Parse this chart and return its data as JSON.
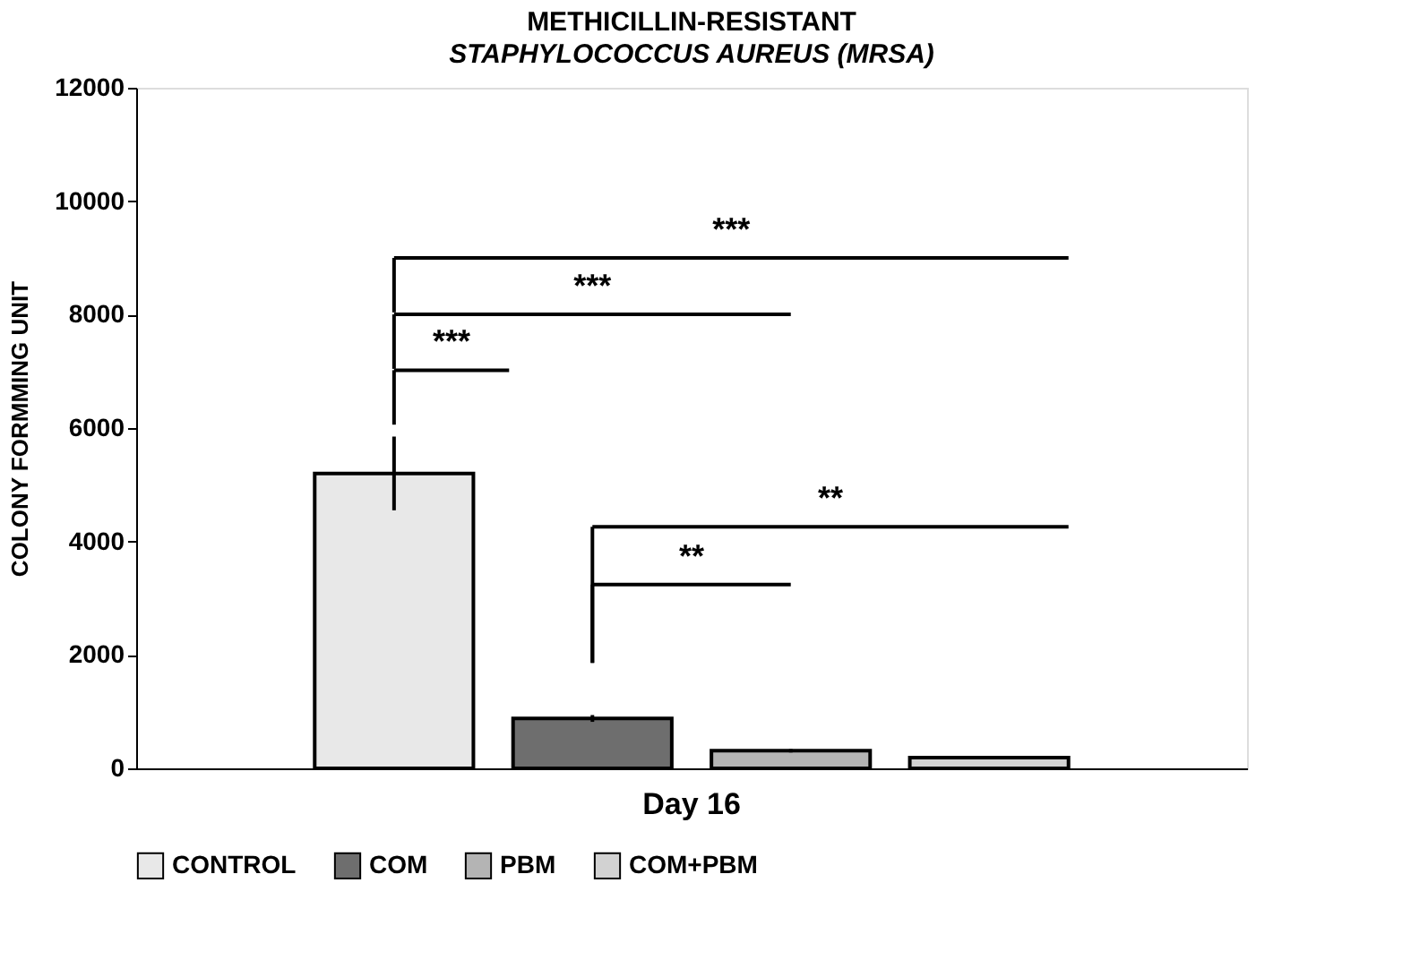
{
  "chart_data": {
    "type": "bar",
    "title": "METHICILLIN-RESISTANT",
    "subtitle": "STAPHYLOCOCCUS AUREUS (MRSA)",
    "ylabel": "COLONY FORMMING UNIT",
    "categories": [
      "Day 16"
    ],
    "series": [
      {
        "name": "CONTROL",
        "color": "#e8e8e8",
        "values": [
          5200
        ],
        "errors": [
          650
        ]
      },
      {
        "name": "COM",
        "color": "#6e6e6e",
        "values": [
          880
        ],
        "errors": [
          60
        ]
      },
      {
        "name": "PBM",
        "color": "#b4b4b4",
        "values": [
          310
        ],
        "errors": [
          30
        ]
      },
      {
        "name": "COM+PBM",
        "color": "#d2d2d2",
        "values": [
          190
        ],
        "errors": [
          20
        ]
      }
    ],
    "ylim": [
      0,
      12000
    ],
    "yticks": [
      0,
      2000,
      4000,
      6000,
      8000,
      10000,
      12000
    ],
    "grid": false,
    "legend": "bottom",
    "annotations": [
      "***",
      "***",
      "***",
      "**",
      "**"
    ]
  }
}
